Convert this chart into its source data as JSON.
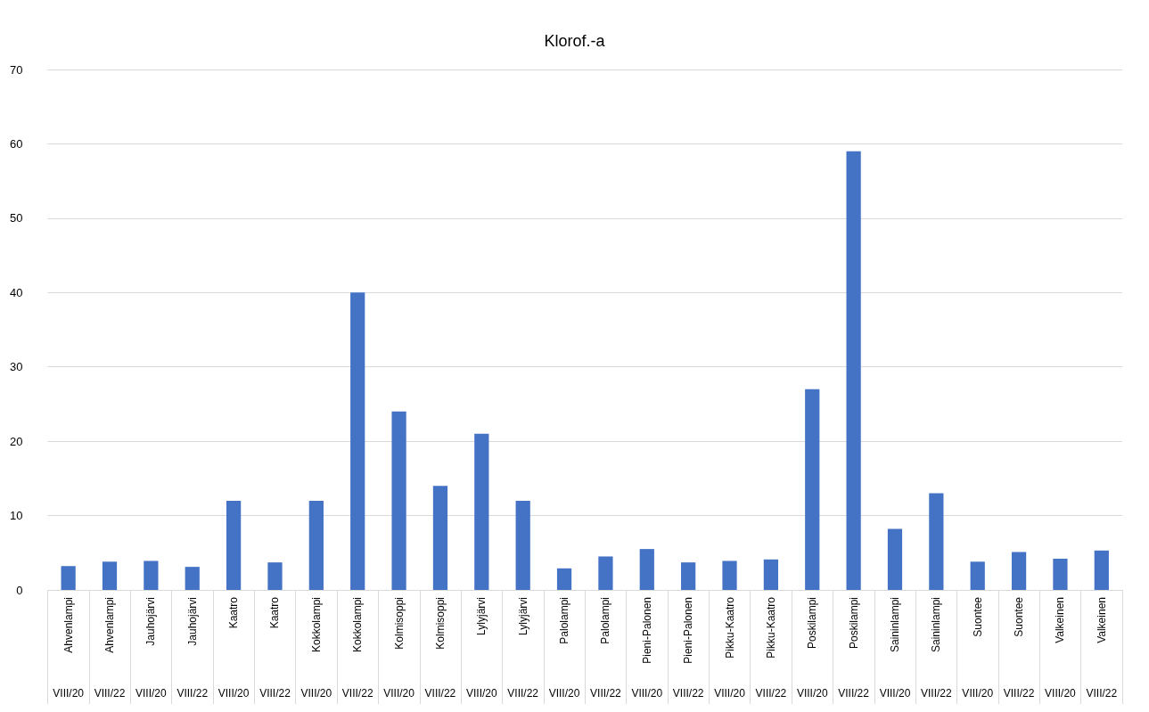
{
  "chart_data": {
    "type": "bar",
    "title": "Klorof.-a",
    "categories": [
      "Ahvenlampi\nVIII/20",
      "Ahvenlampi\nVIII/22",
      "Jauhojärvi\nVIII/20",
      "Jauhojärvi\nVIII/22",
      "Kaatro\nVIII/20",
      "Kaatro\nVIII/22",
      "Kokkolampi\nVIII/20",
      "Kokkolampi\nVIII/22",
      "Kolmisoppi\nVIII/20",
      "Kolmisoppi\nVIII/22",
      "Lylyjärvi\nVIII/20",
      "Lylyjärvi\nVIII/22",
      "Palolampi\nVIII/20",
      "Palolampi\nVIII/22",
      "Pieni-Palonen\nVIII/20",
      "Pieni-Palonen\nVIII/22",
      "Pikku-Kaatro\nVIII/20",
      "Pikku-Kaatro\nVIII/22",
      "Poskilampi\nVIII/20",
      "Poskilampi\nVIII/22",
      "Saininlampi\nVIII/20",
      "Saininlampi\nVIII/22",
      "Suontee\nVIII/20",
      "Suontee\nVIII/22",
      "Valkeinen\nVIII/20",
      "Valkeinen\nVIII/22"
    ],
    "values": [
      3.2,
      3.8,
      3.9,
      3.1,
      12,
      3.7,
      12,
      40,
      24,
      14,
      21,
      12,
      2.9,
      4.5,
      5.5,
      3.7,
      3.9,
      4.1,
      27,
      59,
      8.2,
      13,
      3.8,
      5.1,
      4.2,
      5.3
    ],
    "color": "#4472c4",
    "ylim": [
      0,
      70
    ],
    "yticks": [
      0,
      10,
      20,
      30,
      40,
      50,
      60,
      70
    ],
    "grid": "y"
  }
}
